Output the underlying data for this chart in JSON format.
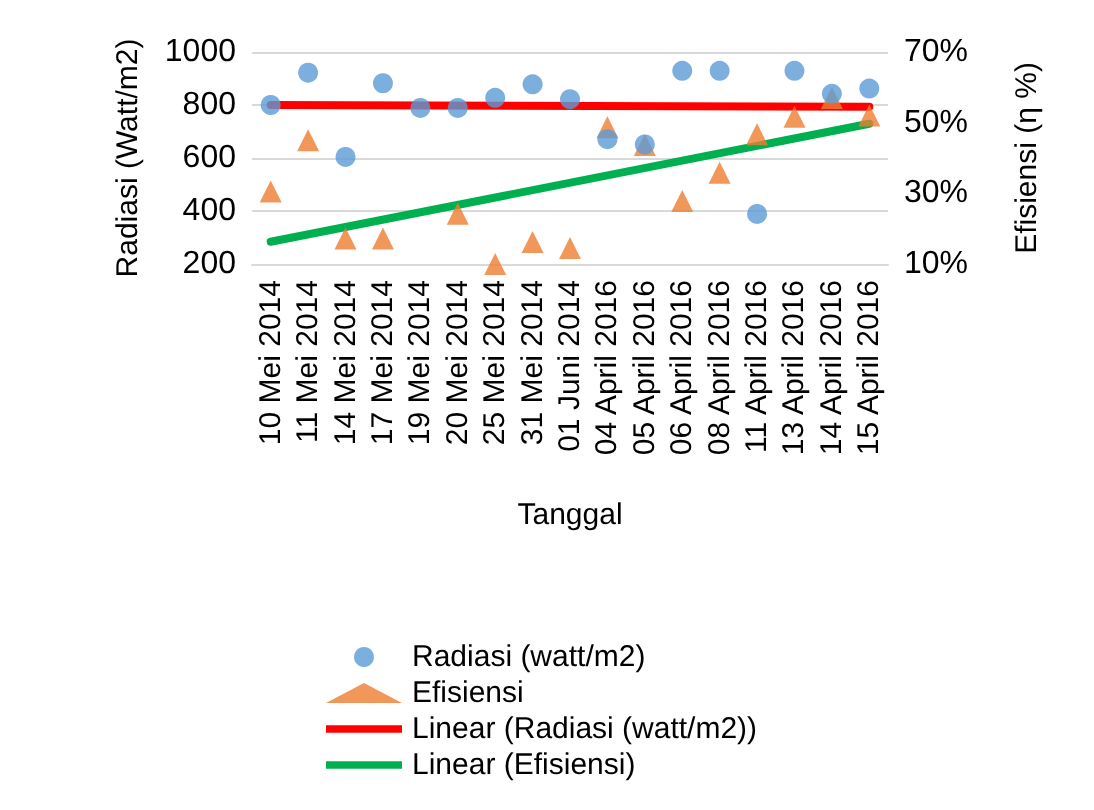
{
  "chart_data": {
    "type": "scatter",
    "xlabel": "Tanggal",
    "ylabel": "Radiasi (Watt/m2)",
    "y2label": "Efisiensi (η %)",
    "categories": [
      "10 Mei 2014",
      "11 Mei 2014",
      "14 Mei 2014",
      "17 Mei 2014",
      "19 Mei 2014",
      "20 Mei 2014",
      "25 Mei 2014",
      "31 Mei 2014",
      "01 Juni 2014",
      "04 April 2016",
      "05 April 2016",
      "06 April 2016",
      "08 April 2016",
      "11 April 2016",
      "13 April 2016",
      "14 April 2016",
      "15 April 2016"
    ],
    "series": [
      {
        "name": "Radiasi (watt/m2)",
        "marker": "circle",
        "color": "#5b9bd5",
        "values": [
          800,
          922,
          604,
          882,
          789,
          789,
          827,
          878,
          822,
          671,
          651,
          929,
          929,
          389,
          929,
          842,
          862
        ]
      },
      {
        "name": "Efisiensi",
        "marker": "triangle",
        "axis": "y2",
        "color": "#ed7d31",
        "values": [
          30.5,
          45,
          17.2,
          17.2,
          null,
          24.2,
          10,
          16.2,
          14.5,
          48.7,
          43.7,
          27.8,
          35.8,
          46.7,
          51.7,
          57,
          52
        ]
      },
      {
        "name": "Linear (Radiasi (watt/m2))",
        "type": "line",
        "line_style": "solid",
        "color": "#ff0000",
        "x": [
          "10 Mei 2014",
          "15 April 2016"
        ],
        "values": [
          800,
          793
        ]
      },
      {
        "name": "Linear (Efisiensi)",
        "type": "line",
        "line_style": "solid",
        "axis": "y2",
        "color": "#00b050",
        "x": [
          "10 Mei 2014",
          "15 April 2016"
        ],
        "values": [
          16.3,
          49.7
        ]
      }
    ],
    "ylim": [
      200,
      1000
    ],
    "yticks": [
      200,
      400,
      600,
      800,
      1000
    ],
    "y2lim": [
      10,
      70
    ],
    "y2ticks": [
      {
        "value": 10,
        "label": "10%"
      },
      {
        "value": 30,
        "label": "30%"
      },
      {
        "value": 50,
        "label": "50%"
      },
      {
        "value": 70,
        "label": "70%"
      }
    ],
    "grid": "y",
    "legend": "bottom"
  }
}
